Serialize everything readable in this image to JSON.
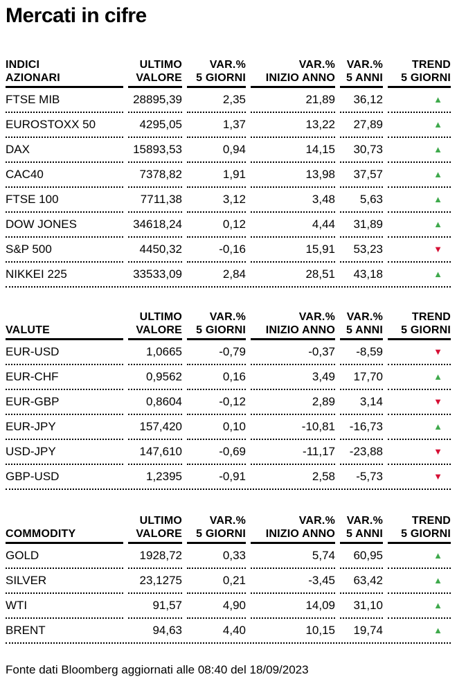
{
  "title": "Mercati in cifre",
  "footer": "Fonte dati Bloomberg aggiornati alle 08:40 del 18/09/2023",
  "colors": {
    "up": "#3FA94C",
    "down": "#D50F34"
  },
  "glyphs": {
    "up": "▲",
    "down": "▼"
  },
  "column_headers": [
    {
      "line1": "ULTIMO",
      "line2": "VALORE"
    },
    {
      "line1": "VAR.%",
      "line2": "5 GIORNI"
    },
    {
      "line1": "VAR.%",
      "line2": "INIZIO ANNO"
    },
    {
      "line1": "VAR.%",
      "line2": "5 ANNI"
    },
    {
      "line1": "TREND",
      "line2": "5 GIORNI"
    }
  ],
  "tables": [
    {
      "id": "indici-azionari",
      "label_line1": "INDICI",
      "label_line2": "AZIONARI",
      "rows": [
        {
          "name": "FTSE MIB",
          "values": [
            "28895,39",
            "2,35",
            "21,89",
            "36,12"
          ],
          "trend": "up"
        },
        {
          "name": "EUROSTOXX 50",
          "values": [
            "4295,05",
            "1,37",
            "13,22",
            "27,89"
          ],
          "trend": "up"
        },
        {
          "name": "DAX",
          "values": [
            "15893,53",
            "0,94",
            "14,15",
            "30,73"
          ],
          "trend": "up"
        },
        {
          "name": "CAC40",
          "values": [
            "7378,82",
            "1,91",
            "13,98",
            "37,57"
          ],
          "trend": "up"
        },
        {
          "name": "FTSE 100",
          "values": [
            "7711,38",
            "3,12",
            "3,48",
            "5,63"
          ],
          "trend": "up"
        },
        {
          "name": "DOW JONES",
          "values": [
            "34618,24",
            "0,12",
            "4,44",
            "31,89"
          ],
          "trend": "up"
        },
        {
          "name": "S&P 500",
          "values": [
            "4450,32",
            "-0,16",
            "15,91",
            "53,23"
          ],
          "trend": "down"
        },
        {
          "name": "NIKKEI 225",
          "values": [
            "33533,09",
            "2,84",
            "28,51",
            "43,18"
          ],
          "trend": "up"
        }
      ]
    },
    {
      "id": "valute",
      "label_line1": "",
      "label_line2": "VALUTE",
      "rows": [
        {
          "name": "EUR-USD",
          "values": [
            "1,0665",
            "-0,79",
            "-0,37",
            "-8,59"
          ],
          "trend": "down"
        },
        {
          "name": "EUR-CHF",
          "values": [
            "0,9562",
            "0,16",
            "3,49",
            "17,70"
          ],
          "trend": "up"
        },
        {
          "name": "EUR-GBP",
          "values": [
            "0,8604",
            "-0,12",
            "2,89",
            "3,14"
          ],
          "trend": "down"
        },
        {
          "name": "EUR-JPY",
          "values": [
            "157,420",
            "0,10",
            "-10,81",
            "-16,73"
          ],
          "trend": "up"
        },
        {
          "name": "USD-JPY",
          "values": [
            "147,610",
            "-0,69",
            "-11,17",
            "-23,88"
          ],
          "trend": "down"
        },
        {
          "name": "GBP-USD",
          "values": [
            "1,2395",
            "-0,91",
            "2,58",
            "-5,73"
          ],
          "trend": "down"
        }
      ]
    },
    {
      "id": "commodity",
      "label_line1": "",
      "label_line2": "COMMODITY",
      "rows": [
        {
          "name": "GOLD",
          "values": [
            "1928,72",
            "0,33",
            "5,74",
            "60,95"
          ],
          "trend": "up"
        },
        {
          "name": "SILVER",
          "values": [
            "23,1275",
            "0,21",
            "-3,45",
            "63,42"
          ],
          "trend": "up"
        },
        {
          "name": "WTI",
          "values": [
            "91,57",
            "4,90",
            "14,09",
            "31,10"
          ],
          "trend": "up"
        },
        {
          "name": "BRENT",
          "values": [
            "94,63",
            "4,40",
            "10,15",
            "19,74"
          ],
          "trend": "up"
        }
      ]
    }
  ]
}
